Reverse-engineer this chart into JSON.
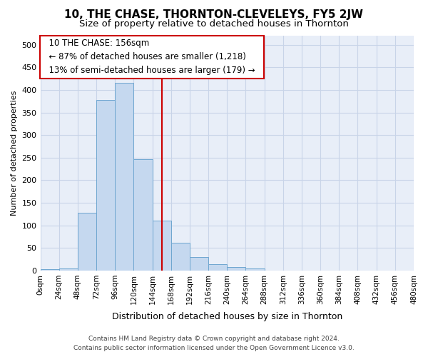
{
  "title": "10, THE CHASE, THORNTON-CLEVELEYS, FY5 2JW",
  "subtitle": "Size of property relative to detached houses in Thornton",
  "xlabel": "Distribution of detached houses by size in Thornton",
  "ylabel": "Number of detached properties",
  "footer_line1": "Contains HM Land Registry data © Crown copyright and database right 2024.",
  "footer_line2": "Contains public sector information licensed under the Open Government Licence v3.0.",
  "annotation_line1": "10 THE CHASE: 156sqm",
  "annotation_line2": "← 87% of detached houses are smaller (1,218)",
  "annotation_line3": "13% of semi-detached houses are larger (179) →",
  "property_size": 156,
  "bin_edges": [
    0,
    24,
    48,
    72,
    96,
    120,
    144,
    168,
    192,
    216,
    240,
    264,
    288,
    312,
    336,
    360,
    384,
    408,
    432,
    456,
    480
  ],
  "counts": [
    3,
    5,
    128,
    378,
    415,
    246,
    110,
    62,
    30,
    14,
    8,
    5,
    0,
    0,
    0,
    0,
    0,
    0,
    0,
    0,
    1
  ],
  "bar_color": "#c5d8ef",
  "bar_edgecolor": "#6ea6d0",
  "annotation_box_color": "#ffffff",
  "annotation_box_edgecolor": "#cc0000",
  "vline_color": "#cc0000",
  "grid_color": "#c8d4e8",
  "background_color": "#e8eef8",
  "title_fontsize": 11,
  "subtitle_fontsize": 9.5,
  "xlabel_fontsize": 9,
  "ylabel_fontsize": 8,
  "tick_label_fontsize": 7.5,
  "annotation_fontsize": 8.5,
  "footer_fontsize": 6.5,
  "ylim": [
    0,
    520
  ],
  "xlim": [
    0,
    480
  ]
}
